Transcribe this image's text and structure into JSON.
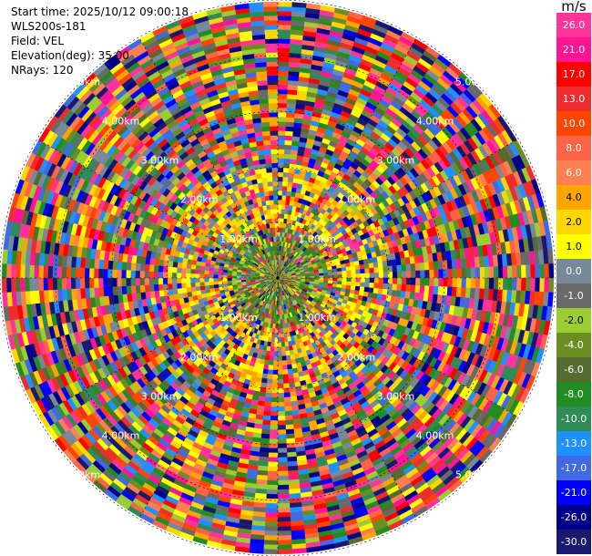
{
  "header": {
    "start_time": "Start time: 2025/10/12 09:00:18",
    "station": "WLS200s-181",
    "field": "Field: VEL",
    "elevation": "Elevation(deg): 35.00",
    "nrays": "NRays: 120"
  },
  "chart_data": {
    "type": "heatmap",
    "projection": "polar-ppi",
    "grid": true,
    "rings": [
      "1.00km",
      "2.00km",
      "3.00km",
      "4.00km",
      "5.00km"
    ],
    "rays": 120,
    "colorbar": {
      "unit": "m/s",
      "placement": "right",
      "ticks": [
        "26.0",
        "21.0",
        "17.0",
        "13.0",
        "10.0",
        "8.0",
        "6.0",
        "4.0",
        "2.0",
        "1.0",
        "0.0",
        "-1.0",
        "-2.0",
        "-4.0",
        "-6.0",
        "-8.0",
        "-10.0",
        "-13.0",
        "-17.0",
        "-21.0",
        "-26.0",
        "-30.0"
      ],
      "bins": [
        {
          "label": "26.0",
          "color": "#ff3399"
        },
        {
          "label": "21.0",
          "color": "#ff1493"
        },
        {
          "label": "17.0",
          "color": "#ff0000"
        },
        {
          "label": "13.0",
          "color": "#ee2c2c"
        },
        {
          "label": "10.0",
          "color": "#ff4500"
        },
        {
          "label": "8.0",
          "color": "#ff6347"
        },
        {
          "label": "6.0",
          "color": "#ff7f50"
        },
        {
          "label": "4.0",
          "color": "#ffa500"
        },
        {
          "label": "2.0",
          "color": "#ffd700"
        },
        {
          "label": "1.0",
          "color": "#ffff00"
        },
        {
          "label": "0.0",
          "color": "#778899"
        },
        {
          "label": "-1.0",
          "color": "#696969"
        },
        {
          "label": "-2.0",
          "color": "#9acd32"
        },
        {
          "label": "-4.0",
          "color": "#6b8e23"
        },
        {
          "label": "-6.0",
          "color": "#556b2f"
        },
        {
          "label": "-8.0",
          "color": "#228b22"
        },
        {
          "label": "-10.0",
          "color": "#2e8b57"
        },
        {
          "label": "-13.0",
          "color": "#1e90ff"
        },
        {
          "label": "-17.0",
          "color": "#4169e1"
        },
        {
          "label": "-21.0",
          "color": "#0000ff"
        },
        {
          "label": "-26.0",
          "color": "#00008b"
        },
        {
          "label": "-30.0",
          "color": "#191970"
        }
      ]
    }
  }
}
